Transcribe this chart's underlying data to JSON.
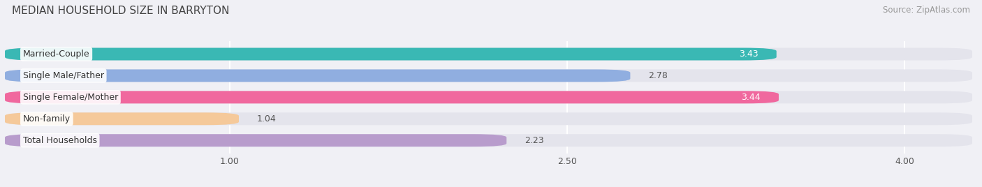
{
  "title": "MEDIAN HOUSEHOLD SIZE IN BARRYTON",
  "source": "Source: ZipAtlas.com",
  "categories": [
    "Married-Couple",
    "Single Male/Father",
    "Single Female/Mother",
    "Non-family",
    "Total Households"
  ],
  "values": [
    3.43,
    2.78,
    3.44,
    1.04,
    2.23
  ],
  "bar_colors": [
    "#3ab8b4",
    "#90aee0",
    "#f0689e",
    "#f5c99a",
    "#b89ccc"
  ],
  "xlim_left": 0.0,
  "xlim_right": 4.3,
  "xstart": 0.0,
  "xticks": [
    1.0,
    2.5,
    4.0
  ],
  "background_color": "#f0f0f5",
  "bar_bg_color": "#e4e4ec",
  "title_fontsize": 11,
  "source_fontsize": 8.5,
  "label_fontsize": 9,
  "value_fontsize": 9,
  "bar_height": 0.58,
  "figsize": [
    14.06,
    2.68
  ],
  "dpi": 100,
  "value_inside_threshold": 3.0
}
